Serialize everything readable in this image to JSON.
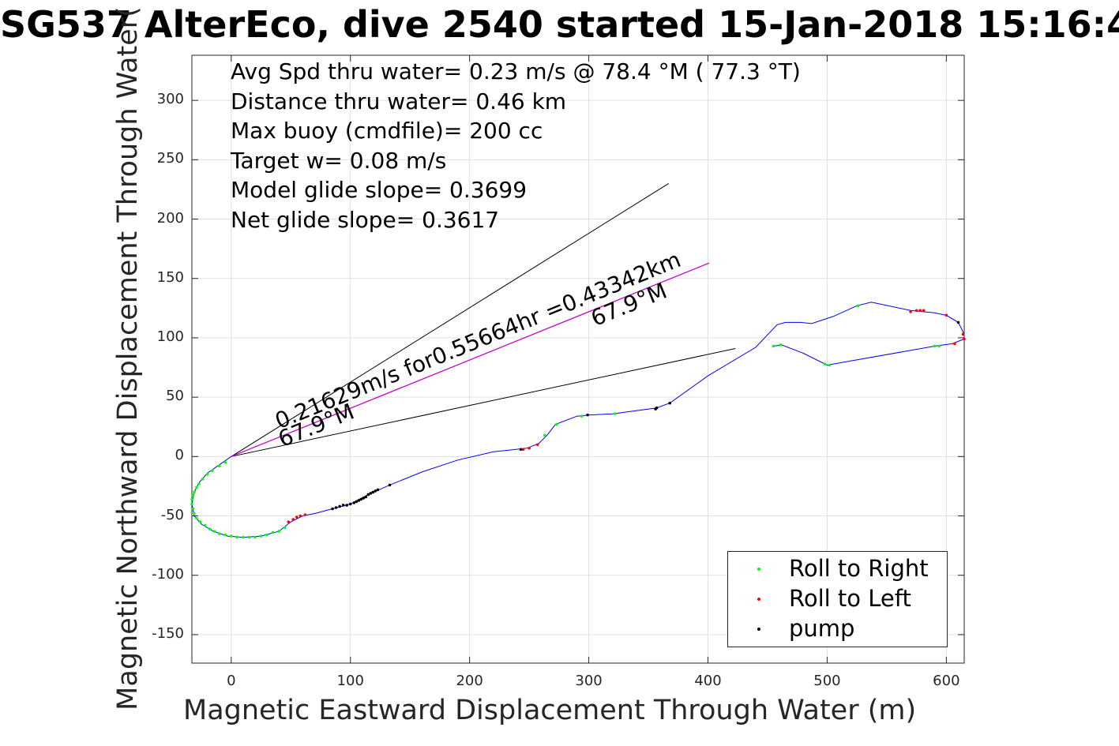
{
  "chart_data": {
    "type": "scatter",
    "title": "SG537 AlterEco, dive 2540 started 15-Jan-2018 15:16:4",
    "xlabel": "Magnetic Eastward Displacement Through Water (m)",
    "ylabel": "Magnetic Northward Displacement Through Water(",
    "xlim": [
      -33,
      615
    ],
    "ylim": [
      -174,
      338
    ],
    "xticks": [
      0,
      100,
      200,
      300,
      400,
      500,
      600
    ],
    "yticks": [
      -150,
      -100,
      -50,
      0,
      50,
      100,
      150,
      200,
      250,
      300
    ],
    "grid": true,
    "legend_position": "bottom-right",
    "annotations": {
      "lines": [
        "Avg Spd thru water=  0.23 m/s @  78.4 °M ( 77.3 °T)",
        "Distance thru water=  0.46 km",
        "Max buoy (cmdfile)= 200 cc",
        "Target w= 0.08 m/s",
        "Model glide slope= 0.3699",
        "Net glide slope= 0.3617"
      ],
      "vector_label": "0.21629m/s for0.55664hr =0.43342km",
      "heading_label_1": "67.9°M",
      "heading_label_2": "67.9°M"
    },
    "colors": {
      "track": "#0000ff",
      "roll_right": "#00ff00",
      "roll_left": "#ff0000",
      "pump": "#000000",
      "vector": "#cc00cc",
      "cone": "#000000",
      "grid": "#e0e0e0",
      "axis": "#262626"
    },
    "track": [
      [
        0,
        0
      ],
      [
        -10,
        -7
      ],
      [
        -20,
        -14
      ],
      [
        -27,
        -22
      ],
      [
        -31,
        -30
      ],
      [
        -33,
        -40
      ],
      [
        -31,
        -50
      ],
      [
        -25,
        -57
      ],
      [
        -15,
        -63
      ],
      [
        -3,
        -67
      ],
      [
        10,
        -68
      ],
      [
        25,
        -67
      ],
      [
        40,
        -63
      ],
      [
        50,
        -55
      ],
      [
        60,
        -50
      ],
      [
        70,
        -48
      ],
      [
        85,
        -44
      ],
      [
        100,
        -40
      ],
      [
        115,
        -32
      ],
      [
        133,
        -24
      ],
      [
        160,
        -13
      ],
      [
        190,
        -3
      ],
      [
        220,
        4
      ],
      [
        248,
        7
      ],
      [
        258,
        11
      ],
      [
        265,
        18
      ],
      [
        272,
        27
      ],
      [
        290,
        34
      ],
      [
        300,
        35
      ],
      [
        320,
        36
      ],
      [
        357,
        41
      ],
      [
        368,
        45
      ],
      [
        400,
        68
      ],
      [
        440,
        92
      ],
      [
        458,
        111
      ],
      [
        465,
        113
      ],
      [
        478,
        113
      ],
      [
        487,
        112
      ],
      [
        505,
        118
      ],
      [
        525,
        127
      ],
      [
        537,
        130
      ],
      [
        570,
        123
      ],
      [
        590,
        121
      ],
      [
        600,
        119
      ],
      [
        610,
        113
      ],
      [
        615,
        103
      ],
      [
        615,
        99
      ],
      [
        605,
        95
      ],
      [
        590,
        93
      ],
      [
        500,
        77
      ],
      [
        480,
        87
      ],
      [
        462,
        94
      ],
      [
        455,
        93
      ]
    ],
    "series": [
      {
        "name": "Roll to Right",
        "color": "#00ff00",
        "points": [
          [
            -5,
            -5
          ],
          [
            -10,
            -8
          ],
          [
            -16,
            -12
          ],
          [
            -20,
            -15
          ],
          [
            -24,
            -19
          ],
          [
            -27,
            -23
          ],
          [
            -29,
            -26
          ],
          [
            -31,
            -30
          ],
          [
            -32,
            -33
          ],
          [
            -33,
            -36
          ],
          [
            -33,
            -40
          ],
          [
            -32,
            -44
          ],
          [
            -31,
            -48
          ],
          [
            -29,
            -52
          ],
          [
            -26,
            -55
          ],
          [
            -22,
            -58
          ],
          [
            -18,
            -61
          ],
          [
            -14,
            -63
          ],
          [
            -10,
            -65
          ],
          [
            -5,
            -66
          ],
          [
            0,
            -67
          ],
          [
            5,
            -68
          ],
          [
            10,
            -68
          ],
          [
            15,
            -68
          ],
          [
            20,
            -68
          ],
          [
            25,
            -67
          ],
          [
            30,
            -66
          ],
          [
            35,
            -64
          ],
          [
            40,
            -63
          ],
          [
            45,
            -60
          ],
          [
            263,
            18
          ],
          [
            273,
            27
          ],
          [
            294,
            34
          ],
          [
            322,
            36
          ],
          [
            455,
            93
          ],
          [
            461,
            94
          ],
          [
            498,
            78
          ],
          [
            502,
            77
          ],
          [
            526,
            127
          ],
          [
            590,
            93
          ],
          [
            594,
            93
          ]
        ]
      },
      {
        "name": "Roll to Left",
        "color": "#ff0000",
        "points": [
          [
            48,
            -55
          ],
          [
            52,
            -53
          ],
          [
            55,
            -51
          ],
          [
            58,
            -50
          ],
          [
            62,
            -49
          ],
          [
            245,
            6
          ],
          [
            250,
            7
          ],
          [
            257,
            10
          ],
          [
            570,
            122
          ],
          [
            575,
            123
          ],
          [
            578,
            123
          ],
          [
            581,
            123
          ],
          [
            600,
            119
          ],
          [
            607,
            95
          ],
          [
            614,
            103
          ],
          [
            615,
            99
          ]
        ]
      },
      {
        "name": "pump",
        "color": "#000000",
        "points": [
          [
            85,
            -44
          ],
          [
            88,
            -43
          ],
          [
            91,
            -42
          ],
          [
            94,
            -41
          ],
          [
            97,
            -41
          ],
          [
            100,
            -40
          ],
          [
            103,
            -39
          ],
          [
            105,
            -38
          ],
          [
            107,
            -37
          ],
          [
            109,
            -36
          ],
          [
            111,
            -35
          ],
          [
            113,
            -34
          ],
          [
            115,
            -32
          ],
          [
            117,
            -31
          ],
          [
            119,
            -30
          ],
          [
            121,
            -29
          ],
          [
            123,
            -28
          ],
          [
            133,
            -24
          ],
          [
            243,
            6
          ],
          [
            299,
            35
          ],
          [
            356,
            40
          ],
          [
            357,
            41
          ],
          [
            368,
            45
          ],
          [
            610,
            113
          ]
        ]
      }
    ],
    "current_vector": {
      "from": [
        0,
        0
      ],
      "to": [
        401,
        163
      ]
    },
    "cone_lines": [
      {
        "from": [
          0,
          0
        ],
        "to": [
          367,
          230
        ]
      },
      {
        "from": [
          0,
          0
        ],
        "to": [
          423,
          91
        ]
      }
    ]
  }
}
